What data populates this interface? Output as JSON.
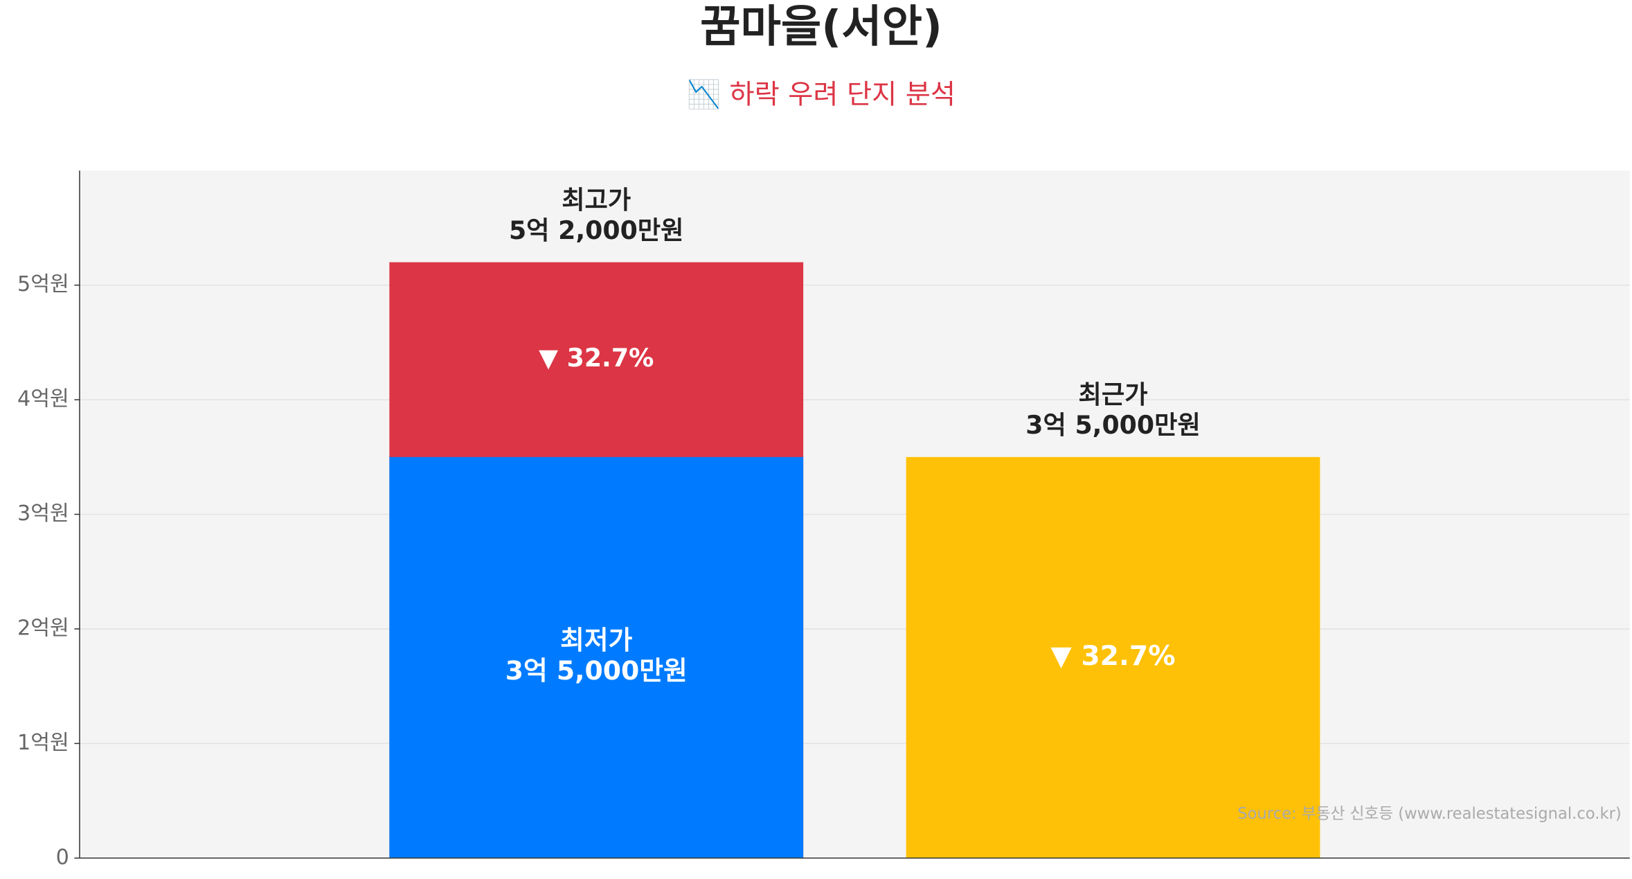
{
  "chart_data": {
    "type": "bar",
    "title": "꿈마을(서안)",
    "subtitle": "📉 하락 우려 단지 분석",
    "bars": [
      {
        "name": "최고가",
        "value": 5.2,
        "value_label": "5억 2,000만원",
        "color": "#dc3545",
        "change_label": "▼ 32.7%"
      },
      {
        "name": "최근가",
        "value": 3.5,
        "value_label": "3억 5,000만원",
        "color": "#ffc107",
        "change_label": "▼ 32.7%"
      }
    ],
    "overlay": {
      "name": "최저가",
      "value": 3.5,
      "value_label": "3억 5,000만원",
      "color": "#007bff"
    },
    "ylim": [
      0,
      6
    ],
    "yticks": [
      0,
      {
        "value": 1,
        "label": "1억원"
      },
      {
        "value": 2,
        "label": "2억원"
      },
      {
        "value": 3,
        "label": "3억원"
      },
      {
        "value": 4,
        "label": "4억원"
      },
      {
        "value": 5,
        "label": "5억원"
      }
    ],
    "grid": true,
    "source": "Source: 부동산 신호등 (www.realestatesignal.co.kr)"
  }
}
